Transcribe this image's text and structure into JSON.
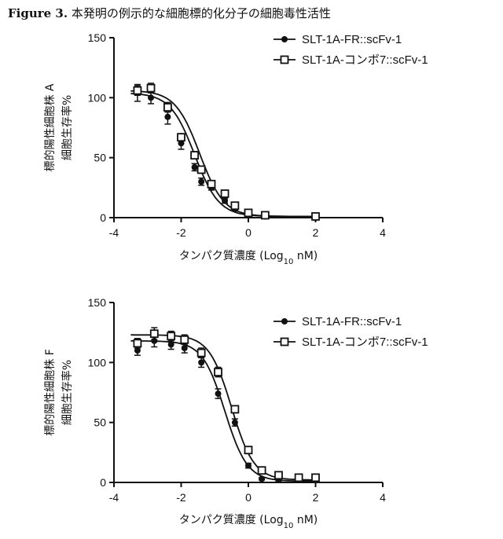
{
  "figure": {
    "tag": "Figure 3.",
    "title": "本発明の例示的な細胞標的化分子の細胞毒性活性"
  },
  "chart_data": [
    {
      "type": "scatter",
      "panel": "top",
      "title": "",
      "xlabel_prefix": "タンパク質濃度 (Log",
      "xlabel_sub": "10",
      "xlabel_suffix": " nM)",
      "ylabel_line1": "標的陽性細胞株 A",
      "ylabel_line2": "細胞生存率%",
      "xlim": [
        -4,
        4
      ],
      "ylim": [
        0,
        150
      ],
      "xticks": [
        -4,
        -2,
        0,
        2,
        4
      ],
      "yticks": [
        0,
        50,
        100,
        150
      ],
      "grid": false,
      "legend_position": "top-right",
      "series": [
        {
          "name": "SLT-1A-FR::scFv-1",
          "marker": "filled-circle",
          "x": [
            -3.3,
            -2.9,
            -2.4,
            -2.0,
            -1.6,
            -1.4,
            -1.1,
            -0.7,
            -0.4,
            0.0,
            0.5,
            2.0
          ],
          "y": [
            104,
            100,
            84,
            62,
            42,
            30,
            25,
            14,
            7,
            3,
            1,
            1
          ],
          "error": [
            7,
            5,
            6,
            5,
            3,
            3,
            2,
            2,
            1,
            1,
            1,
            1
          ],
          "fit": {
            "top": 104,
            "bottom": 1,
            "logIC50": -1.6,
            "hill": 1.2
          }
        },
        {
          "name": "SLT-1A-コンボ7::scFv-1",
          "marker": "open-square",
          "x": [
            -3.3,
            -2.9,
            -2.4,
            -2.0,
            -1.6,
            -1.4,
            -1.1,
            -0.7,
            -0.4,
            0.0,
            0.5,
            2.0
          ],
          "y": [
            106,
            108,
            92,
            67,
            52,
            40,
            28,
            20,
            10,
            4,
            2,
            1
          ],
          "error": [
            4,
            4,
            4,
            3,
            3,
            3,
            2,
            2,
            2,
            1,
            1,
            1
          ],
          "fit": {
            "top": 106,
            "bottom": 1,
            "logIC50": -1.45,
            "hill": 1.2
          }
        }
      ]
    },
    {
      "type": "scatter",
      "panel": "bottom",
      "title": "",
      "xlabel_prefix": "タンパク質濃度 (Log",
      "xlabel_sub": "10",
      "xlabel_suffix": " nM)",
      "ylabel_line1": "標的陽性細胞株 F",
      "ylabel_line2": "細胞生存率%",
      "xlim": [
        -4,
        4
      ],
      "ylim": [
        0,
        150
      ],
      "xticks": [
        -4,
        -2,
        0,
        2,
        4
      ],
      "yticks": [
        0,
        50,
        100,
        150
      ],
      "grid": false,
      "legend_position": "top-right",
      "series": [
        {
          "name": "SLT-1A-FR::scFv-1",
          "marker": "filled-circle",
          "x": [
            -3.3,
            -2.8,
            -2.3,
            -1.9,
            -1.4,
            -0.9,
            -0.4,
            0.0,
            0.4,
            0.9,
            1.5,
            2.0
          ],
          "y": [
            110,
            118,
            115,
            112,
            100,
            74,
            50,
            14,
            3,
            2,
            2,
            2
          ],
          "error": [
            4,
            5,
            4,
            4,
            4,
            4,
            3,
            2,
            1,
            1,
            1,
            1
          ],
          "fit": {
            "top": 118,
            "bottom": 1,
            "logIC50": -0.7,
            "hill": 1.3
          }
        },
        {
          "name": "SLT-1A-コンボ7::scFv-1",
          "marker": "open-square",
          "x": [
            -3.3,
            -2.8,
            -2.3,
            -1.9,
            -1.4,
            -0.9,
            -0.4,
            0.0,
            0.4,
            0.9,
            1.5,
            2.0
          ],
          "y": [
            116,
            124,
            122,
            119,
            108,
            92,
            61,
            27,
            10,
            6,
            4,
            4
          ],
          "error": [
            4,
            5,
            4,
            4,
            4,
            4,
            3,
            2,
            2,
            1,
            1,
            1
          ],
          "fit": {
            "top": 123,
            "bottom": 2,
            "logIC50": -0.5,
            "hill": 1.3
          }
        }
      ]
    }
  ]
}
